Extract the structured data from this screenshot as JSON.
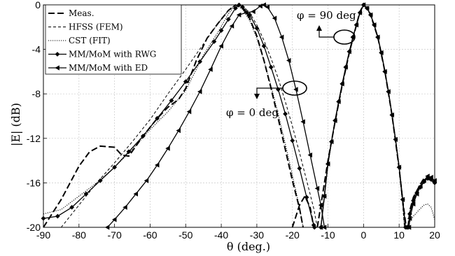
{
  "chart_data": {
    "type": "line",
    "xlabel": "θ (deg.)",
    "ylabel": "|E| (dB)",
    "xlim": [
      -90,
      20
    ],
    "ylim": [
      -20,
      0
    ],
    "x_ticks": [
      "-90",
      "-80",
      "-70",
      "-60",
      "-50",
      "-40",
      "-30",
      "-20",
      "-10",
      "0",
      "10",
      "20"
    ],
    "y_ticks": [
      "-20",
      "-16",
      "-12",
      "-8",
      "-4",
      "0"
    ],
    "grid": true,
    "legend_position": "top-left",
    "annotations": [
      {
        "text": "φ = 90 deg",
        "x": -6,
        "y": -3
      },
      {
        "text": "φ = 0 deg",
        "x": -22,
        "y": -10
      }
    ],
    "series": [
      {
        "name": "Meas.",
        "style": "long-dash",
        "marker": "none",
        "phi0": [
          [
            -90,
            -20
          ],
          [
            -85,
            -17.5
          ],
          [
            -80,
            -14.5
          ],
          [
            -77,
            -13.2
          ],
          [
            -74,
            -12.7
          ],
          [
            -70,
            -12.8
          ],
          [
            -68,
            -13.5
          ],
          [
            -66,
            -13.6
          ],
          [
            -62,
            -11.8
          ],
          [
            -58,
            -10.2
          ],
          [
            -55,
            -9.2
          ],
          [
            -52,
            -8.5
          ],
          [
            -50,
            -7.5
          ],
          [
            -47,
            -5
          ],
          [
            -44,
            -3
          ],
          [
            -41,
            -1.7
          ],
          [
            -38,
            -0.5
          ],
          [
            -36,
            0
          ],
          [
            -34,
            -0.3
          ],
          [
            -32,
            -1.2
          ],
          [
            -30,
            -2.8
          ],
          [
            -28,
            -5
          ],
          [
            -26,
            -7.5
          ],
          [
            -24,
            -10.2
          ],
          [
            -22,
            -13
          ],
          [
            -20,
            -15.8
          ],
          [
            -18,
            -18.3
          ],
          [
            -17,
            -20
          ]
        ],
        "phi0_side": [
          [
            -20,
            -20
          ],
          [
            -18,
            -18
          ],
          [
            -16.5,
            -17.2
          ],
          [
            -15,
            -18.2
          ],
          [
            -14,
            -20
          ]
        ],
        "phi90": [
          [
            -13,
            -20
          ],
          [
            -12,
            -18
          ],
          [
            -11,
            -16
          ],
          [
            -10,
            -14
          ],
          [
            -8,
            -10.5
          ],
          [
            -6,
            -7.2
          ],
          [
            -4,
            -4.3
          ],
          [
            -2,
            -1.8
          ],
          [
            -1,
            -0.6
          ],
          [
            0,
            0
          ],
          [
            1,
            -0.3
          ],
          [
            2,
            -0.9
          ],
          [
            4,
            -2.9
          ],
          [
            6,
            -6
          ],
          [
            8,
            -9.9
          ],
          [
            10,
            -14.7
          ],
          [
            11,
            -17.6
          ],
          [
            12,
            -20
          ]
        ],
        "phi90_side": [
          [
            12.5,
            -20
          ],
          [
            13,
            -18.5
          ],
          [
            14,
            -17.3
          ],
          [
            16,
            -16.1
          ],
          [
            17,
            -15.6
          ],
          [
            18,
            -15.5
          ],
          [
            19,
            -15.7
          ],
          [
            20,
            -16
          ]
        ]
      },
      {
        "name": "HFSS (FEM)",
        "style": "short-dash",
        "marker": "none",
        "phi0": [
          [
            -85,
            -20
          ],
          [
            -80,
            -18
          ],
          [
            -75,
            -16
          ],
          [
            -70,
            -14.2
          ],
          [
            -65,
            -12.3
          ],
          [
            -60,
            -10.3
          ],
          [
            -55,
            -8
          ],
          [
            -50,
            -5.8
          ],
          [
            -45,
            -3.5
          ],
          [
            -41,
            -1.7
          ],
          [
            -38,
            -0.5
          ],
          [
            -36,
            0
          ],
          [
            -34,
            -0.1
          ],
          [
            -32,
            -0.7
          ],
          [
            -30,
            -1.8
          ],
          [
            -28,
            -3.2
          ],
          [
            -26,
            -4.8
          ],
          [
            -24,
            -6.6
          ],
          [
            -22,
            -8.7
          ],
          [
            -20,
            -10.9
          ],
          [
            -18,
            -13.3
          ],
          [
            -16,
            -15.8
          ],
          [
            -14,
            -18.3
          ],
          [
            -13,
            -20
          ]
        ],
        "phi90": [
          [
            -12,
            -20
          ],
          [
            -10,
            -14
          ],
          [
            -8,
            -10.5
          ],
          [
            -6,
            -7.2
          ],
          [
            -4,
            -4.3
          ],
          [
            -2,
            -1.8
          ],
          [
            -1,
            -0.6
          ],
          [
            0,
            0
          ],
          [
            1,
            -0.3
          ],
          [
            2,
            -0.9
          ],
          [
            4,
            -2.9
          ],
          [
            6,
            -6
          ],
          [
            8,
            -9.9
          ],
          [
            10,
            -14.7
          ],
          [
            11,
            -18
          ],
          [
            11.5,
            -20
          ]
        ],
        "phi90_side": [
          [
            12.5,
            -20
          ],
          [
            13,
            -18.6
          ],
          [
            14,
            -17.4
          ],
          [
            16,
            -16.3
          ],
          [
            17,
            -15.8
          ],
          [
            18,
            -15.7
          ],
          [
            19,
            -15.8
          ],
          [
            20,
            -16.1
          ]
        ]
      },
      {
        "name": "CST (FIT)",
        "style": "dotted",
        "marker": "none",
        "phi0": [
          [
            -90,
            -18.8
          ],
          [
            -85,
            -18.4
          ],
          [
            -80,
            -17.2
          ],
          [
            -75,
            -16
          ],
          [
            -70,
            -14.6
          ],
          [
            -65,
            -13
          ],
          [
            -60,
            -11.2
          ],
          [
            -55,
            -9.6
          ],
          [
            -50,
            -7.7
          ],
          [
            -45,
            -4.5
          ],
          [
            -41,
            -2.5
          ],
          [
            -38,
            -0.8
          ],
          [
            -36,
            0
          ],
          [
            -34,
            -0.4
          ],
          [
            -32,
            -1.4
          ],
          [
            -30,
            -3
          ],
          [
            -28,
            -5
          ],
          [
            -26,
            -7.3
          ],
          [
            -24,
            -9.8
          ],
          [
            -22,
            -12.5
          ],
          [
            -20,
            -15.3
          ],
          [
            -18,
            -18.2
          ],
          [
            -17,
            -20
          ]
        ],
        "phi90": [
          [
            -12,
            -20
          ],
          [
            -10,
            -14
          ],
          [
            -8,
            -10.5
          ],
          [
            -6,
            -7.2
          ],
          [
            -4,
            -4.3
          ],
          [
            -2,
            -1.8
          ],
          [
            -1,
            -0.6
          ],
          [
            0,
            0
          ],
          [
            1,
            -0.3
          ],
          [
            2,
            -0.9
          ],
          [
            4,
            -2.9
          ],
          [
            6,
            -6
          ],
          [
            8,
            -9.9
          ],
          [
            10,
            -14.7
          ],
          [
            11,
            -18
          ],
          [
            11.5,
            -20
          ]
        ],
        "phi90_side": [
          [
            12.5,
            -20
          ],
          [
            13,
            -19.5
          ],
          [
            14,
            -19
          ],
          [
            16,
            -18.3
          ],
          [
            17,
            -18
          ],
          [
            18,
            -17.9
          ],
          [
            19,
            -18.2
          ],
          [
            20,
            -19.3
          ]
        ]
      },
      {
        "name": "MM/MoM with RWG",
        "style": "solid",
        "marker": "diamond",
        "phi0": [
          [
            -90,
            -19.2
          ],
          [
            -86,
            -19
          ],
          [
            -82,
            -18.2
          ],
          [
            -78,
            -17
          ],
          [
            -74,
            -15.8
          ],
          [
            -70,
            -14.6
          ],
          [
            -66,
            -13.2
          ],
          [
            -62,
            -11.8
          ],
          [
            -58,
            -10.2
          ],
          [
            -54,
            -8.6
          ],
          [
            -50,
            -6.9
          ],
          [
            -46,
            -5.1
          ],
          [
            -42,
            -3.3
          ],
          [
            -40,
            -2.3
          ],
          [
            -38,
            -1.3
          ],
          [
            -36,
            -0.3
          ],
          [
            -35,
            0
          ],
          [
            -34,
            -0.2
          ],
          [
            -32,
            -0.9
          ],
          [
            -30,
            -2.1
          ],
          [
            -28,
            -3.7
          ],
          [
            -26,
            -5.6
          ],
          [
            -24,
            -7.6
          ],
          [
            -22,
            -9.8
          ],
          [
            -20,
            -12.2
          ],
          [
            -18,
            -14.7
          ],
          [
            -16,
            -17.3
          ],
          [
            -14,
            -19.8
          ],
          [
            -13.8,
            -20
          ]
        ],
        "phi90": [
          [
            -12,
            -20
          ],
          [
            -11,
            -17.2
          ],
          [
            -10,
            -14.3
          ],
          [
            -9,
            -12.3
          ],
          [
            -8,
            -10.4
          ],
          [
            -7,
            -8.7
          ],
          [
            -6,
            -7.1
          ],
          [
            -5,
            -5.6
          ],
          [
            -4,
            -4.2
          ],
          [
            -3,
            -2.9
          ],
          [
            -2,
            -1.8
          ],
          [
            -1,
            -0.7
          ],
          [
            0,
            0
          ],
          [
            1,
            -0.3
          ],
          [
            2,
            -0.9
          ],
          [
            3,
            -1.8
          ],
          [
            4,
            -2.9
          ],
          [
            5,
            -4.3
          ],
          [
            6,
            -6
          ],
          [
            7,
            -7.8
          ],
          [
            8,
            -9.9
          ],
          [
            9,
            -12.1
          ],
          [
            10,
            -14.6
          ],
          [
            11,
            -17.5
          ],
          [
            11.8,
            -20
          ]
        ],
        "phi90_side": [
          [
            12.6,
            -20
          ],
          [
            13,
            -18.8
          ],
          [
            14,
            -17.6
          ],
          [
            15,
            -16.9
          ],
          [
            16,
            -16.4
          ],
          [
            17,
            -15.9
          ],
          [
            18,
            -15.6
          ],
          [
            19,
            -15.7
          ],
          [
            20,
            -16
          ]
        ]
      },
      {
        "name": "MM/MoM with ED",
        "style": "solid",
        "marker": "triangle-left",
        "phi0": [
          [
            -72,
            -20
          ],
          [
            -70,
            -19.3
          ],
          [
            -67,
            -18.2
          ],
          [
            -64,
            -17
          ],
          [
            -61,
            -15.8
          ],
          [
            -58,
            -14.4
          ],
          [
            -55,
            -12.9
          ],
          [
            -52,
            -11.3
          ],
          [
            -49,
            -9.6
          ],
          [
            -46,
            -7.8
          ],
          [
            -43,
            -5.8
          ],
          [
            -40,
            -3.7
          ],
          [
            -37,
            -1.9
          ],
          [
            -35,
            -0.9
          ],
          [
            -33,
            -0.7
          ],
          [
            -31,
            -0.6
          ],
          [
            -29,
            -0.1
          ],
          [
            -28,
            0
          ],
          [
            -27,
            -0.2
          ],
          [
            -25,
            -1.2
          ],
          [
            -23,
            -2.9
          ],
          [
            -21,
            -5
          ],
          [
            -19,
            -7.6
          ],
          [
            -17,
            -10.5
          ],
          [
            -15,
            -13.5
          ],
          [
            -13,
            -16.5
          ],
          [
            -12,
            -18
          ],
          [
            -11,
            -20
          ]
        ],
        "phi90": [
          [
            -12,
            -20
          ],
          [
            -11,
            -17.2
          ],
          [
            -10,
            -14.3
          ],
          [
            -9,
            -12.3
          ],
          [
            -8,
            -10.4
          ],
          [
            -7,
            -8.7
          ],
          [
            -6,
            -7.1
          ],
          [
            -5,
            -5.6
          ],
          [
            -4,
            -4.2
          ],
          [
            -3,
            -2.9
          ],
          [
            -2,
            -1.8
          ],
          [
            -1,
            -0.7
          ],
          [
            0,
            0
          ],
          [
            1,
            -0.3
          ],
          [
            2,
            -0.9
          ],
          [
            3,
            -1.8
          ],
          [
            4,
            -2.9
          ],
          [
            5,
            -4.3
          ],
          [
            6,
            -6
          ],
          [
            7,
            -7.8
          ],
          [
            8,
            -9.9
          ],
          [
            9,
            -12.1
          ],
          [
            10,
            -14.6
          ],
          [
            11,
            -17.5
          ],
          [
            11.8,
            -20
          ]
        ],
        "phi90_side": [
          [
            12.8,
            -20
          ],
          [
            13,
            -19.2
          ],
          [
            14,
            -17.9
          ],
          [
            15,
            -17
          ],
          [
            16,
            -16.3
          ],
          [
            17,
            -15.8
          ],
          [
            18,
            -15.4
          ],
          [
            19,
            -15.5
          ],
          [
            20,
            -15.8
          ]
        ]
      }
    ]
  }
}
